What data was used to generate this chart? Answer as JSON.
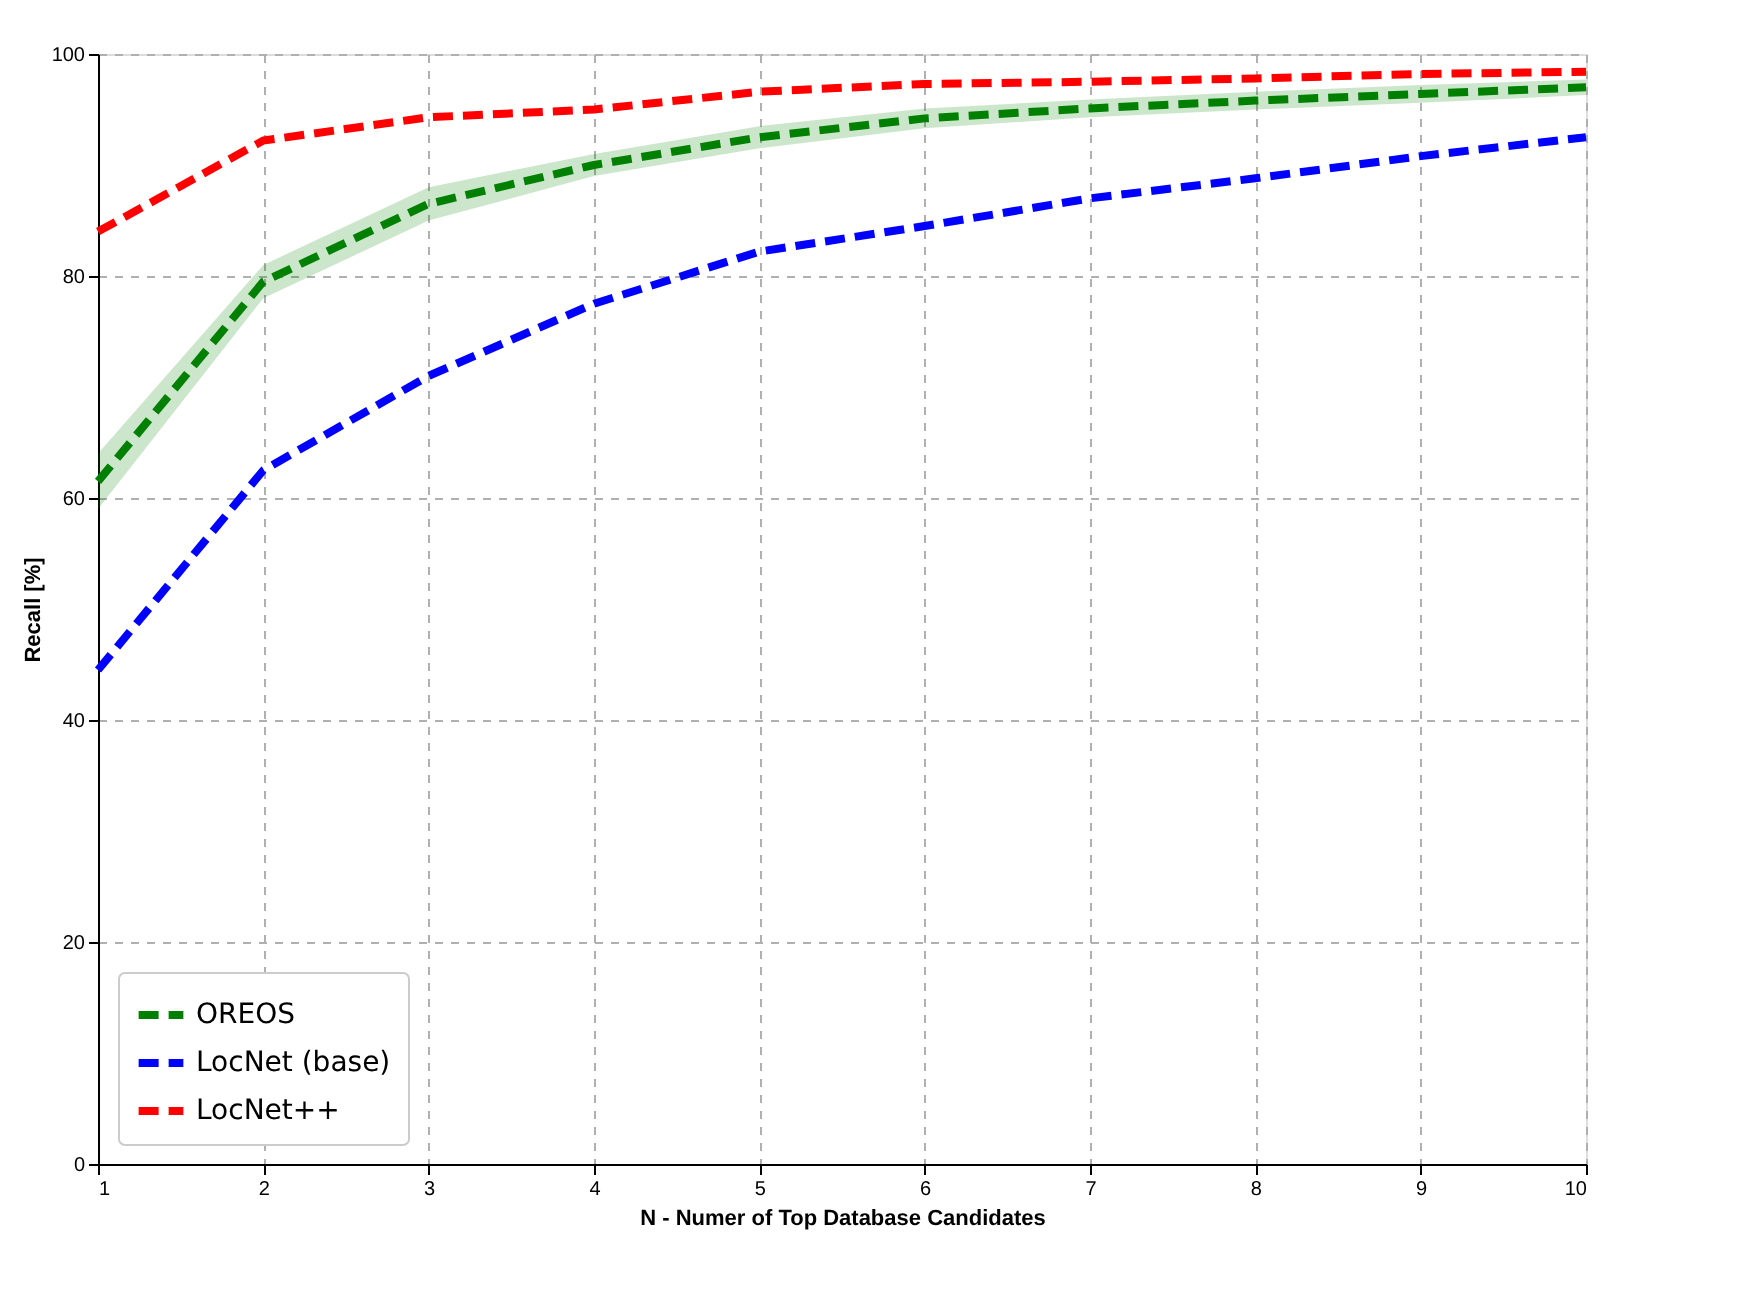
{
  "chart_data": {
    "type": "line",
    "xlabel": "N - Numer of Top Database Candidates",
    "ylabel": "Recall [%]",
    "x": [
      1,
      2,
      3,
      4,
      5,
      6,
      7,
      8,
      9,
      10
    ],
    "series": [
      {
        "name": "OREOS",
        "color": "#008000",
        "values": [
          61.5,
          79.5,
          86.5,
          90,
          92.5,
          94.2,
          95.1,
          95.8,
          96.4,
          97
        ],
        "lower": [
          59,
          78,
          85,
          89,
          91.5,
          93.3,
          94.3,
          95,
          95.6,
          96.3
        ],
        "upper": [
          64,
          81,
          88,
          91,
          93.5,
          95.1,
          95.9,
          96.6,
          97.2,
          97.7
        ]
      },
      {
        "name": "LocNet (base)",
        "color": "#0000ff",
        "values": [
          44.5,
          62.5,
          71,
          77.5,
          82.2,
          84.5,
          87,
          88.8,
          90.8,
          92.5
        ]
      },
      {
        "name": "LocNet++",
        "color": "#ff0000",
        "values": [
          84,
          92.2,
          94.3,
          95,
          96.6,
          97.3,
          97.5,
          97.8,
          98.2,
          98.4
        ]
      }
    ],
    "xlim": [
      1,
      10
    ],
    "ylim": [
      0,
      100
    ],
    "xticks": [
      1,
      2,
      3,
      4,
      5,
      6,
      7,
      8,
      9,
      10
    ],
    "yticks": [
      0,
      20,
      40,
      60,
      80,
      100
    ],
    "grid": true,
    "legend": "bottom left",
    "line_style": "dashed",
    "marker": "none"
  }
}
